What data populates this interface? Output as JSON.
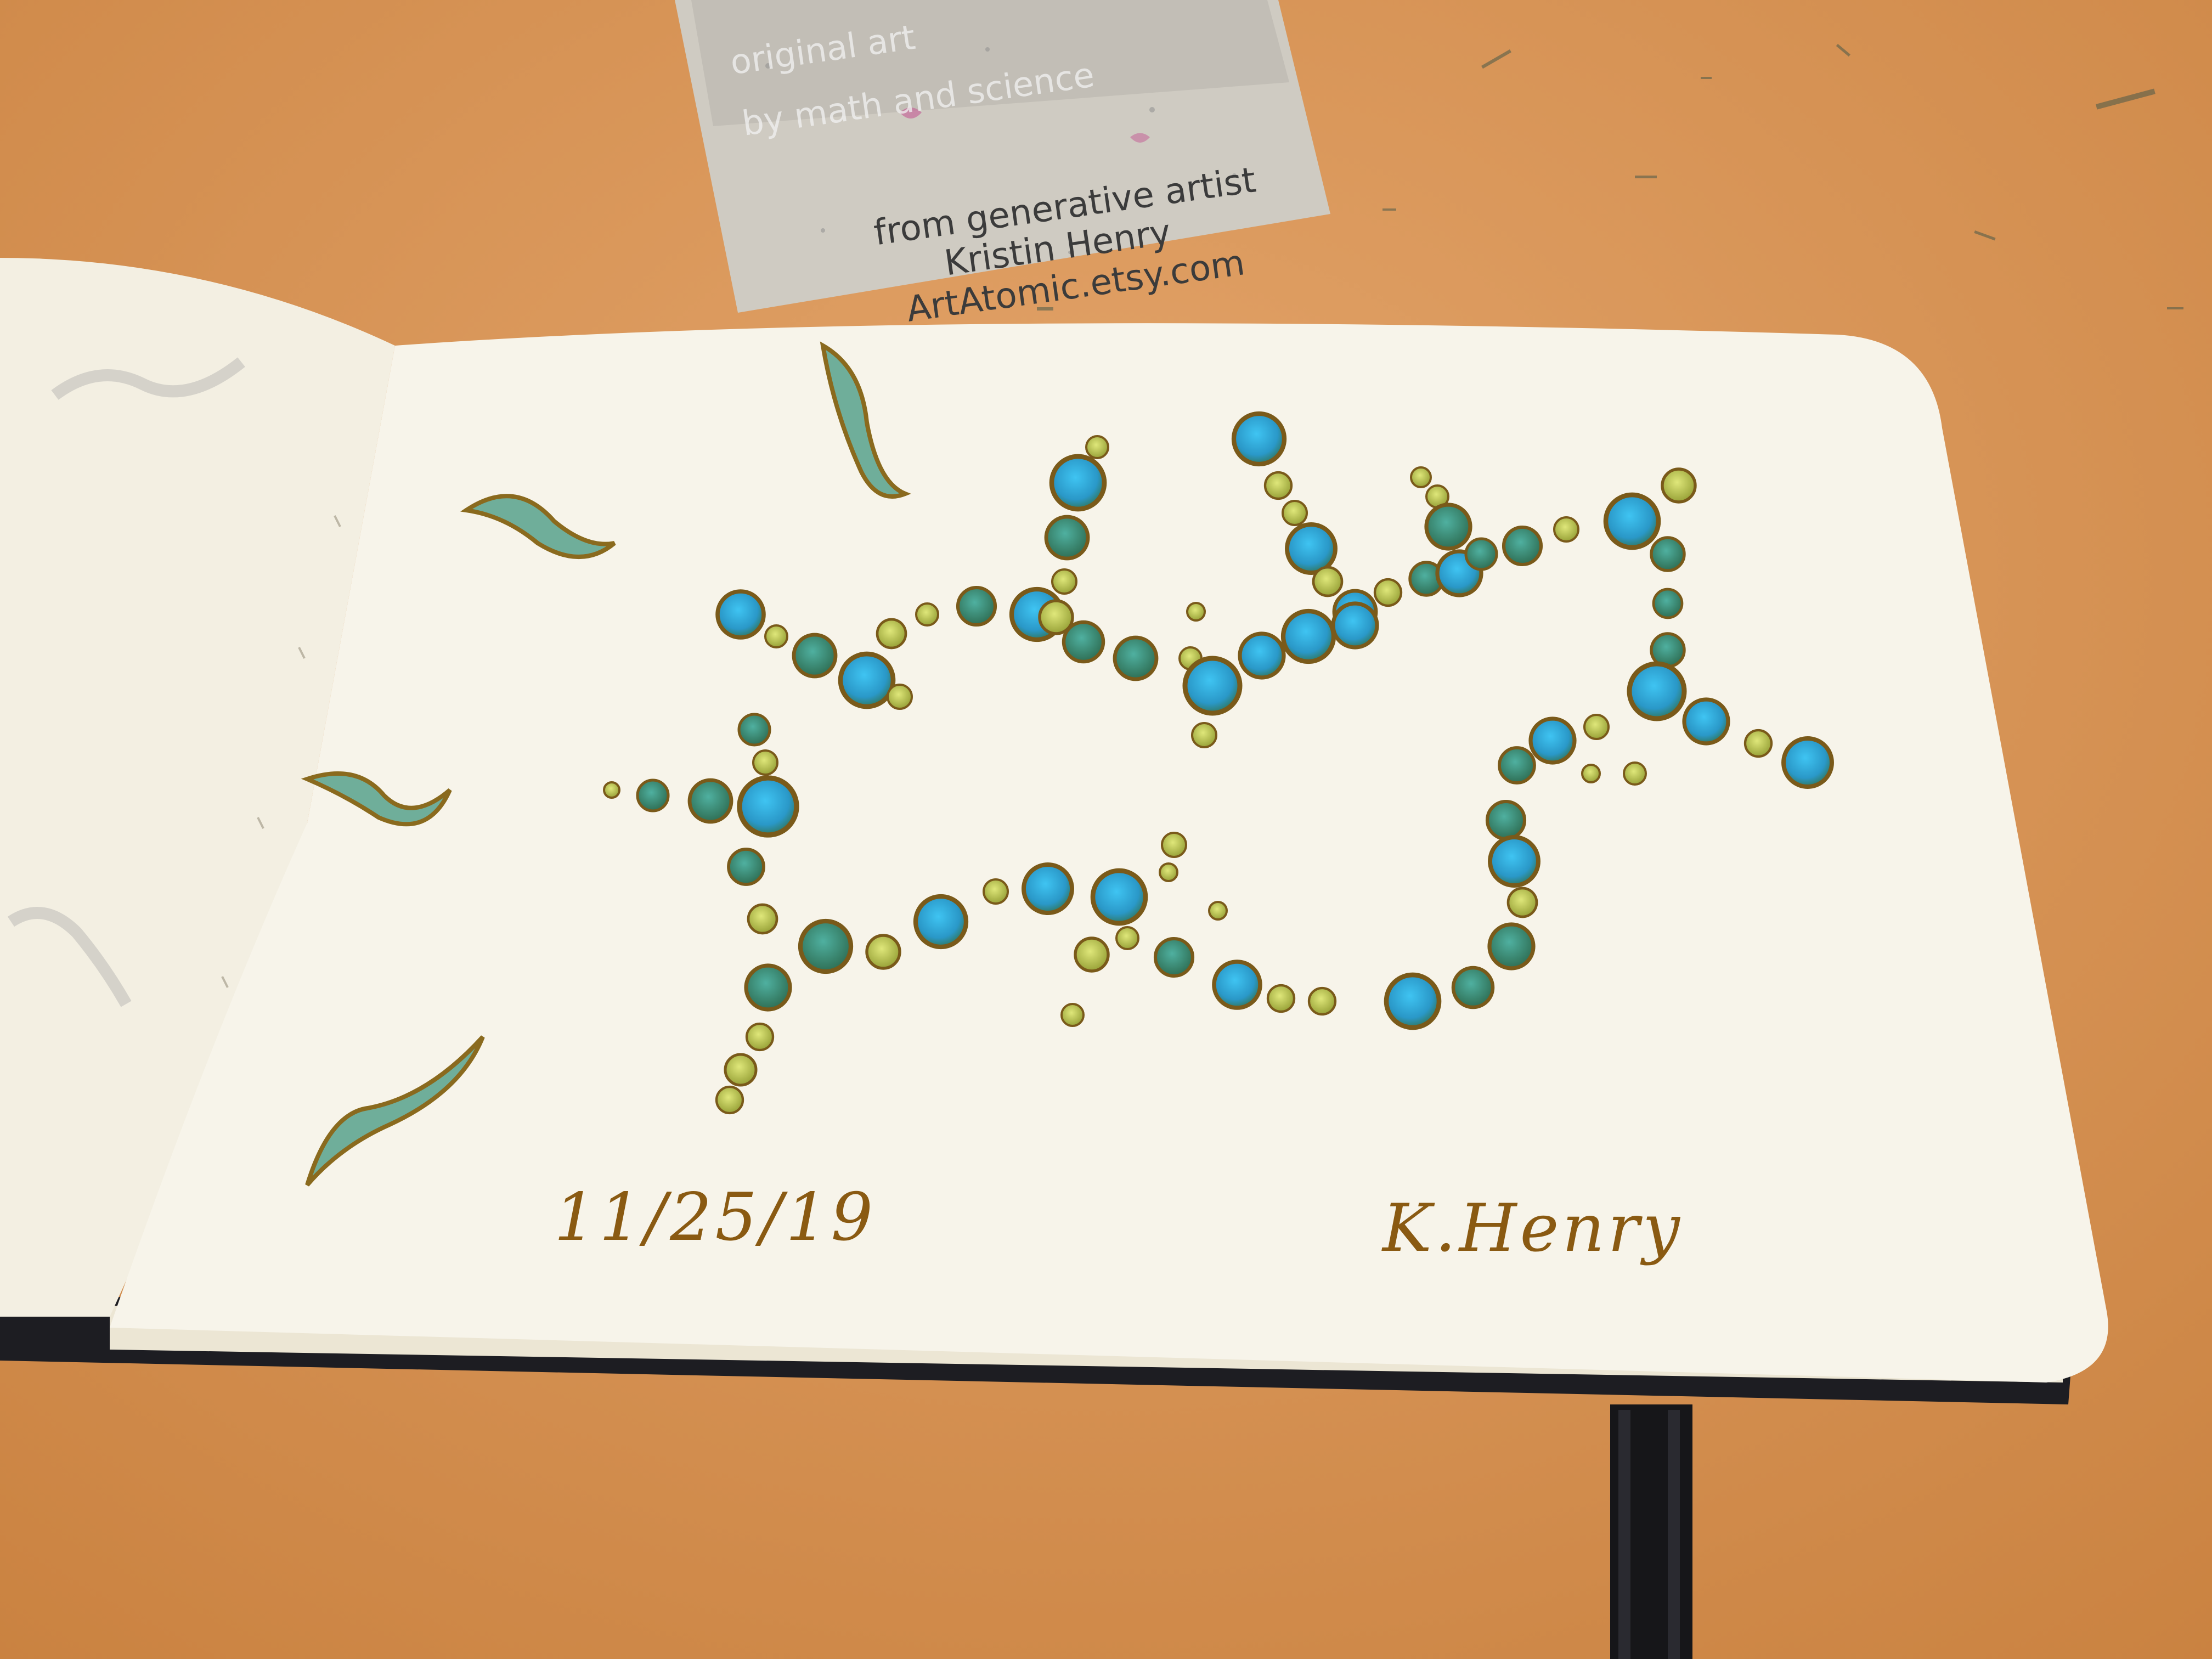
{
  "photo": {
    "subject": "open sketchbook with dot artwork",
    "colors": {
      "table": "#d9955a",
      "table_dark": "#c27a3e",
      "paper": "#f6f3e8",
      "paper_shadow": "#e8e2d0",
      "dot_rim": "#8a6a1e",
      "dot_fill_blue": "#2fa6d6",
      "dot_fill_teal": "#3f8f7a",
      "dot_fill_yellow": "#b9c45a",
      "squiggle_fill": "#6fae9a",
      "ink_brown": "#8a5a12",
      "book_black": "#1d1d22"
    }
  },
  "card": {
    "line1": "original art",
    "line2": "by math and science",
    "line3": "from generative artist",
    "line4": "Kristin Henry",
    "line5": "ArtAtomic.etsy.com"
  },
  "artwork": {
    "date": "11/25/19",
    "signature": "K.Henry"
  }
}
